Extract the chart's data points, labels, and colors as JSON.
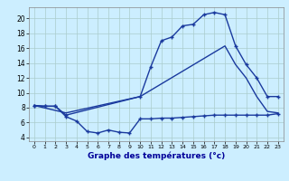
{
  "line1_x": [
    0,
    1,
    2,
    3,
    10,
    11,
    12,
    13,
    14,
    15,
    16,
    17,
    18,
    19,
    20,
    21,
    22,
    23
  ],
  "line1_y": [
    8.3,
    8.2,
    8.2,
    7.0,
    9.5,
    13.5,
    17.0,
    17.5,
    19.0,
    19.2,
    20.5,
    20.8,
    20.5,
    16.3,
    13.8,
    12.0,
    9.5,
    9.5
  ],
  "line2_x": [
    0,
    3,
    10,
    18,
    19,
    20,
    21,
    22,
    23
  ],
  "line2_y": [
    8.3,
    7.3,
    9.5,
    16.3,
    13.8,
    12.0,
    9.5,
    7.5,
    7.3
  ],
  "line3_x": [
    0,
    1,
    2,
    3,
    4,
    5,
    6,
    7,
    8,
    9,
    10,
    11,
    12,
    13,
    14,
    15,
    16,
    17,
    18,
    19,
    20,
    21,
    22,
    23
  ],
  "line3_y": [
    8.3,
    8.2,
    8.2,
    6.8,
    6.2,
    4.8,
    4.6,
    5.0,
    4.7,
    4.6,
    6.5,
    6.5,
    6.6,
    6.6,
    6.7,
    6.8,
    6.9,
    7.0,
    7.0,
    7.0,
    7.0,
    7.0,
    7.0,
    7.2
  ],
  "line_color": "#1a3a9e",
  "bg_color": "#cceeff",
  "grid_color": "#aacccc",
  "xlabel": "Graphe des températures (°c)",
  "xlabel_color": "#000099",
  "ylim": [
    3.5,
    21.5
  ],
  "xlim": [
    -0.5,
    23.5
  ],
  "yticks": [
    4,
    6,
    8,
    10,
    12,
    14,
    16,
    18,
    20
  ],
  "xticks": [
    0,
    1,
    2,
    3,
    4,
    5,
    6,
    7,
    8,
    9,
    10,
    11,
    12,
    13,
    14,
    15,
    16,
    17,
    18,
    19,
    20,
    21,
    22,
    23
  ]
}
